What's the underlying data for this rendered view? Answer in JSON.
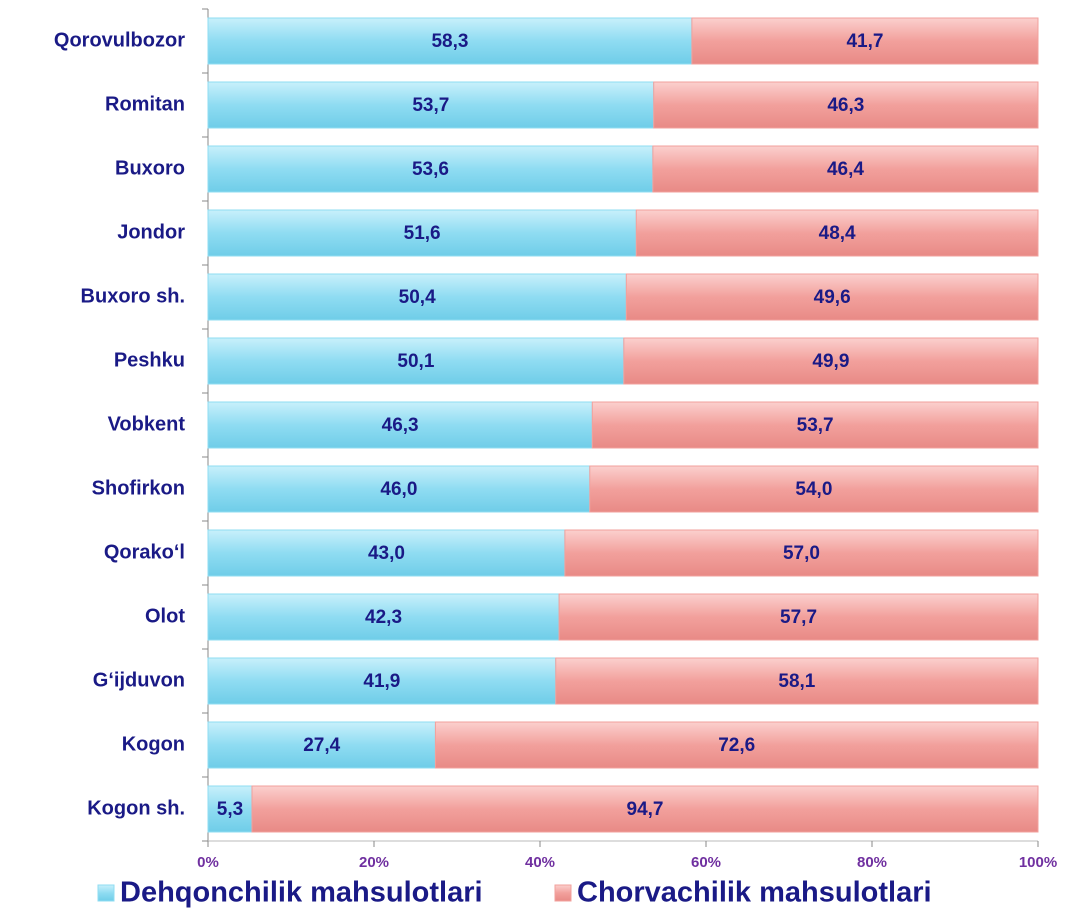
{
  "chart_data": {
    "type": "stacked_bar_horizontal",
    "categories": [
      "Qorovulbozor",
      "Romitan",
      "Buxoro",
      "Jondor",
      "Buxoro sh.",
      "Peshku",
      "Vobkent",
      "Shofirkon",
      "Qorako‘l",
      "Olot",
      "G‘ijduvon",
      "Kogon",
      "Kogon sh."
    ],
    "series": [
      {
        "name": "Dehqonchilik mahsulotlari",
        "color": "#8fdcf2",
        "values": [
          58.3,
          53.7,
          53.6,
          51.6,
          50.4,
          50.1,
          46.3,
          46.0,
          43.0,
          42.3,
          41.9,
          27.4,
          5.3
        ],
        "value_labels": [
          "58,3",
          "53,7",
          "53,6",
          "51,6",
          "50,4",
          "50,1",
          "46,3",
          "46,0",
          "43,0",
          "42,3",
          "41,9",
          "27,4",
          "5,3"
        ]
      },
      {
        "name": "Chorvachilik mahsulotlari",
        "color": "#f2a09c",
        "values": [
          41.7,
          46.3,
          46.4,
          48.4,
          49.6,
          49.9,
          53.7,
          54.0,
          57.0,
          57.7,
          58.1,
          72.6,
          94.7
        ],
        "value_labels": [
          "41,7",
          "46,3",
          "46,4",
          "48,4",
          "49,6",
          "49,9",
          "53,7",
          "54,0",
          "57,0",
          "57,7",
          "58,1",
          "72,6",
          "94,7"
        ]
      }
    ],
    "xlim": [
      0,
      100
    ],
    "xticks": [
      {
        "value": 0,
        "label": "0%"
      },
      {
        "value": 20,
        "label": "20%"
      },
      {
        "value": 40,
        "label": "40%"
      },
      {
        "value": 60,
        "label": "60%"
      },
      {
        "value": 80,
        "label": "80%"
      },
      {
        "value": 100,
        "label": "100%"
      }
    ],
    "legend": "bottom"
  }
}
